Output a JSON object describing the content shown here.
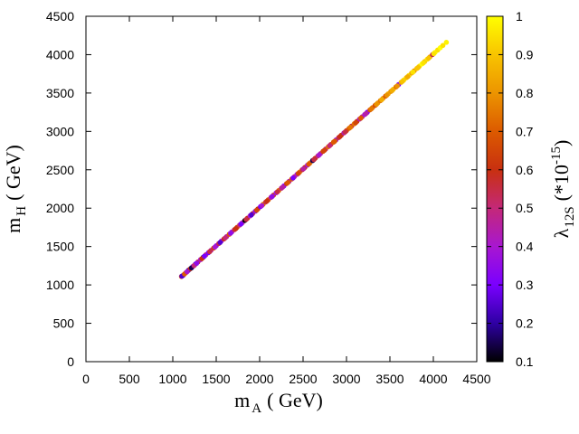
{
  "chart_data": {
    "type": "scatter",
    "xlabel_main": "m",
    "xlabel_sub": "A",
    "xlabel_unit": "( GeV)",
    "ylabel_main": "m",
    "ylabel_sub": "H",
    "ylabel_unit": "( GeV)",
    "colorbar_main": "λ",
    "colorbar_sub": "12S",
    "colorbar_unit_prefix": "(*10",
    "colorbar_unit_exp": "-15",
    "colorbar_unit_suffix": ")",
    "xlim": [
      0,
      4500
    ],
    "ylim": [
      0,
      4500
    ],
    "clim": [
      0.1,
      1
    ],
    "xticks": [
      "0",
      "500",
      "1000",
      "1500",
      "2000",
      "2500",
      "3000",
      "3500",
      "4000",
      "4500"
    ],
    "yticks": [
      "0",
      "500",
      "1000",
      "1500",
      "2000",
      "2500",
      "3000",
      "3500",
      "4000",
      "4500"
    ],
    "cticks": [
      "0.1",
      "0.2",
      "0.3",
      "0.4",
      "0.5",
      "0.6",
      "0.7",
      "0.8",
      "0.9",
      "1"
    ],
    "colormap": [
      "#000000",
      "#2e00a3",
      "#7a00ff",
      "#a817d0",
      "#c42878",
      "#c83010",
      "#dc5a00",
      "#ec9400",
      "#f8c400",
      "#ffff00"
    ],
    "grid": false,
    "points": [
      [
        1100,
        1110,
        0.65
      ],
      [
        1120,
        1125,
        0.3
      ],
      [
        1150,
        1158,
        0.45
      ],
      [
        1180,
        1190,
        0.2
      ],
      [
        1200,
        1208,
        0.6
      ],
      [
        1230,
        1240,
        0.35
      ],
      [
        1260,
        1270,
        0.25
      ],
      [
        1290,
        1300,
        0.55
      ],
      [
        1320,
        1330,
        0.4
      ],
      [
        1350,
        1360,
        0.15
      ],
      [
        1380,
        1392,
        0.5
      ],
      [
        1410,
        1420,
        0.3
      ],
      [
        1440,
        1450,
        0.45
      ],
      [
        1470,
        1480,
        0.65
      ],
      [
        1500,
        1510,
        0.35
      ],
      [
        1530,
        1540,
        0.55
      ],
      [
        1560,
        1572,
        0.4
      ],
      [
        1590,
        1600,
        0.6
      ],
      [
        1620,
        1630,
        0.45
      ],
      [
        1650,
        1660,
        0.7
      ],
      [
        1680,
        1690,
        0.4
      ],
      [
        1710,
        1720,
        0.55
      ],
      [
        1740,
        1750,
        0.65
      ],
      [
        1770,
        1780,
        0.5
      ],
      [
        1800,
        1810,
        0.45
      ],
      [
        1830,
        1840,
        0.1
      ],
      [
        1860,
        1870,
        0.6
      ],
      [
        1890,
        1900,
        0.4
      ],
      [
        1920,
        1930,
        0.55
      ],
      [
        1950,
        1960,
        0.35
      ],
      [
        1980,
        1990,
        0.6
      ],
      [
        2010,
        2020,
        0.3
      ],
      [
        2040,
        2050,
        0.75
      ],
      [
        2070,
        2080,
        0.55
      ],
      [
        2100,
        2110,
        0.7
      ],
      [
        2130,
        2140,
        0.45
      ],
      [
        2160,
        2170,
        0.65
      ],
      [
        2190,
        2200,
        0.4
      ],
      [
        2220,
        2230,
        0.75
      ],
      [
        2250,
        2260,
        0.5
      ],
      [
        2280,
        2290,
        0.35
      ],
      [
        2310,
        2320,
        0.65
      ],
      [
        2340,
        2350,
        0.45
      ],
      [
        2370,
        2380,
        0.7
      ],
      [
        2400,
        2410,
        0.5
      ],
      [
        2430,
        2440,
        0.4
      ],
      [
        2460,
        2470,
        0.75
      ],
      [
        2490,
        2500,
        0.55
      ],
      [
        2520,
        2530,
        0.6
      ],
      [
        2550,
        2560,
        0.4
      ],
      [
        2580,
        2590,
        0.75
      ],
      [
        2610,
        2620,
        0.15
      ],
      [
        2640,
        2650,
        0.6
      ],
      [
        2670,
        2680,
        0.5
      ],
      [
        2700,
        2710,
        0.45
      ],
      [
        2730,
        2740,
        0.65
      ],
      [
        2760,
        2770,
        0.5
      ],
      [
        2790,
        2800,
        0.75
      ],
      [
        2820,
        2830,
        0.55
      ],
      [
        2850,
        2860,
        0.7
      ],
      [
        2880,
        2890,
        0.4
      ],
      [
        2910,
        2920,
        0.55
      ],
      [
        2940,
        2950,
        0.6
      ],
      [
        2970,
        2980,
        0.45
      ],
      [
        3000,
        3010,
        0.65
      ],
      [
        3030,
        3040,
        0.7
      ],
      [
        3060,
        3070,
        0.55
      ],
      [
        3090,
        3100,
        0.75
      ],
      [
        3120,
        3130,
        0.6
      ],
      [
        3150,
        3160,
        0.45
      ],
      [
        3180,
        3190,
        0.5
      ],
      [
        3210,
        3220,
        0.4
      ],
      [
        3240,
        3250,
        0.3
      ],
      [
        3270,
        3280,
        0.7
      ],
      [
        3300,
        3310,
        0.75
      ],
      [
        3330,
        3340,
        0.65
      ],
      [
        3360,
        3370,
        0.8
      ],
      [
        3390,
        3400,
        0.75
      ],
      [
        3420,
        3430,
        0.8
      ],
      [
        3450,
        3460,
        0.7
      ],
      [
        3480,
        3490,
        0.85
      ],
      [
        3510,
        3520,
        0.8
      ],
      [
        3540,
        3550,
        0.9
      ],
      [
        3570,
        3580,
        0.75
      ],
      [
        3600,
        3610,
        0.3
      ],
      [
        3630,
        3640,
        0.85
      ],
      [
        3660,
        3670,
        0.95
      ],
      [
        3690,
        3700,
        0.9
      ],
      [
        3720,
        3730,
        0.95
      ],
      [
        3750,
        3760,
        0.85
      ],
      [
        3780,
        3790,
        0.8
      ],
      [
        3810,
        3820,
        0.9
      ],
      [
        3840,
        3850,
        0.95
      ],
      [
        3870,
        3880,
        1.0
      ],
      [
        3900,
        3910,
        0.9
      ],
      [
        3930,
        3940,
        0.95
      ],
      [
        3960,
        3970,
        0.85
      ],
      [
        3990,
        4000,
        0.55
      ],
      [
        4020,
        4030,
        1.0
      ],
      [
        4050,
        4060,
        0.95
      ],
      [
        4080,
        4090,
        1.0
      ],
      [
        4110,
        4120,
        0.95
      ],
      [
        4150,
        4160,
        0.98
      ],
      [
        1105,
        1115,
        0.25
      ],
      [
        1135,
        1142,
        0.7
      ],
      [
        1165,
        1172,
        0.4
      ],
      [
        1215,
        1222,
        0.15
      ],
      [
        1245,
        1252,
        0.5
      ],
      [
        1275,
        1283,
        0.35
      ],
      [
        1335,
        1342,
        0.6
      ],
      [
        1365,
        1375,
        0.3
      ],
      [
        1425,
        1433,
        0.55
      ],
      [
        1485,
        1493,
        0.4
      ],
      [
        1545,
        1553,
        0.25
      ],
      [
        1605,
        1613,
        0.5
      ],
      [
        1665,
        1673,
        0.35
      ],
      [
        1725,
        1733,
        0.6
      ],
      [
        1785,
        1793,
        0.3
      ],
      [
        1845,
        1853,
        0.55
      ],
      [
        1905,
        1913,
        0.25
      ],
      [
        1965,
        1973,
        0.65
      ],
      [
        2025,
        2033,
        0.4
      ],
      [
        2085,
        2093,
        0.6
      ],
      [
        2145,
        2153,
        0.35
      ],
      [
        2205,
        2213,
        0.55
      ],
      [
        2265,
        2273,
        0.45
      ],
      [
        2325,
        2333,
        0.7
      ],
      [
        2385,
        2393,
        0.3
      ],
      [
        2445,
        2453,
        0.65
      ],
      [
        2505,
        2513,
        0.45
      ],
      [
        2565,
        2573,
        0.7
      ],
      [
        2625,
        2633,
        0.55
      ],
      [
        2685,
        2693,
        0.4
      ],
      [
        2745,
        2753,
        0.65
      ],
      [
        2805,
        2813,
        0.5
      ],
      [
        2865,
        2873,
        0.7
      ],
      [
        2925,
        2933,
        0.6
      ],
      [
        2985,
        2993,
        0.55
      ],
      [
        3045,
        3053,
        0.75
      ],
      [
        3105,
        3113,
        0.65
      ],
      [
        3165,
        3173,
        0.7
      ],
      [
        3225,
        3233,
        0.45
      ],
      [
        3285,
        3293,
        0.75
      ],
      [
        3345,
        3353,
        0.8
      ],
      [
        3405,
        3413,
        0.85
      ],
      [
        3465,
        3473,
        0.8
      ],
      [
        3525,
        3533,
        0.85
      ],
      [
        3585,
        3593,
        0.8
      ],
      [
        3645,
        3653,
        0.9
      ],
      [
        3705,
        3713,
        0.85
      ],
      [
        3765,
        3773,
        0.95
      ],
      [
        3825,
        3833,
        0.9
      ],
      [
        3885,
        3893,
        0.95
      ],
      [
        3945,
        3953,
        0.9
      ],
      [
        4005,
        4013,
        0.95
      ]
    ]
  }
}
